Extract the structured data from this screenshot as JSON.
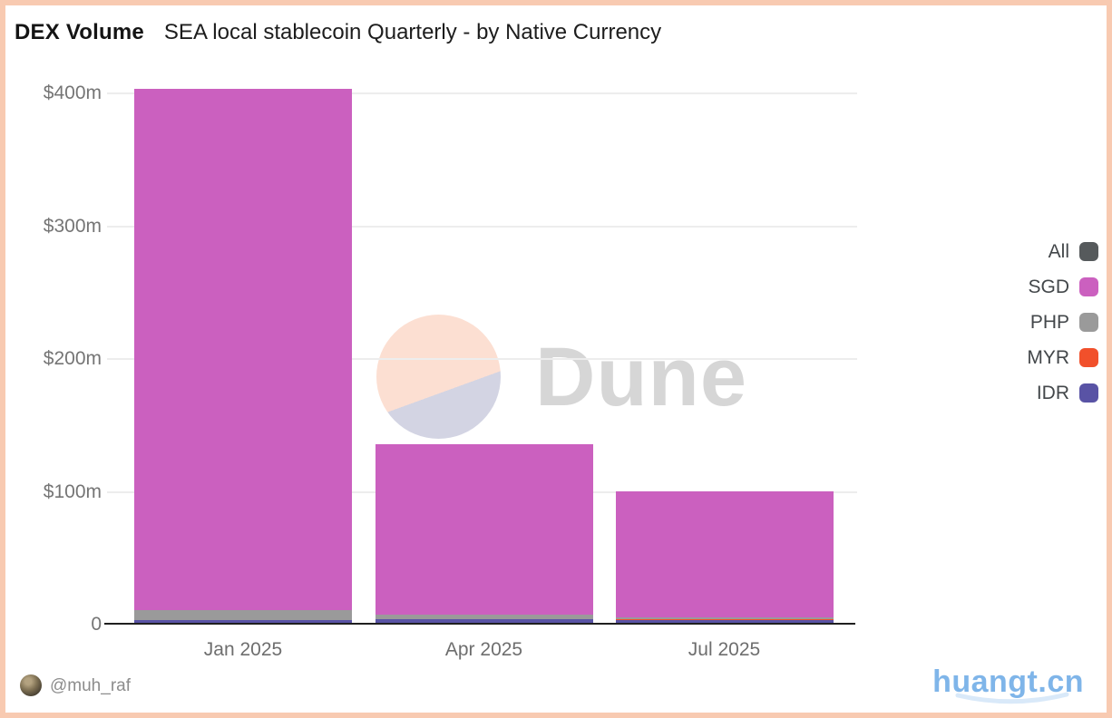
{
  "header": {
    "title": "DEX Volume",
    "subtitle": "SEA local stablecoin Quarterly - by Native Currency"
  },
  "watermark": {
    "brand": "Dune"
  },
  "footer": {
    "author": "@muh_raf",
    "site": "huangt.cn"
  },
  "legend": {
    "position": "right",
    "items": [
      {
        "label": "All",
        "color": "#565a5c"
      },
      {
        "label": "SGD",
        "color": "#cb60bf"
      },
      {
        "label": "PHP",
        "color": "#9a9a9a"
      },
      {
        "label": "MYR",
        "color": "#f1502b"
      },
      {
        "label": "IDR",
        "color": "#5953a5"
      }
    ]
  },
  "colors": {
    "frame": "#f8cab1",
    "axis": "#1f1f1f",
    "grid": "#ededed",
    "brand_blue": "#7fb5e9",
    "watermark_peach": "#fcdfd2",
    "watermark_lavender": "#d3d4e3",
    "watermark_text": "#d6d6d6"
  },
  "chart_data": {
    "type": "bar",
    "stacked": true,
    "title": "DEX Volume — SEA local stablecoin Quarterly - by Native Currency",
    "xlabel": "",
    "ylabel": "",
    "unit": "$m",
    "ylim": [
      0,
      400
    ],
    "grid": "horizontal",
    "legend_position": "right",
    "categories": [
      "Jan 2025",
      "Apr 2025",
      "Jul 2025"
    ],
    "series": [
      {
        "name": "IDR",
        "color": "#5953a5",
        "values": [
          3,
          3.5,
          2.5
        ]
      },
      {
        "name": "MYR",
        "color": "#f1502b",
        "values": [
          0,
          0,
          1
        ]
      },
      {
        "name": "PHP",
        "color": "#9a9a9a",
        "values": [
          7,
          3,
          1
        ]
      },
      {
        "name": "SGD",
        "color": "#cb60bf",
        "values": [
          393,
          128.5,
          95.5
        ]
      }
    ],
    "stack_order": "bottom-to-top",
    "totals_approx": [
      403,
      135,
      100
    ],
    "y_ticks": [
      {
        "label": "$400m",
        "value": 400
      },
      {
        "label": "$300m",
        "value": 300
      },
      {
        "label": "$200m",
        "value": 200
      },
      {
        "label": "$100m",
        "value": 100
      },
      {
        "label": "0",
        "value": 0
      }
    ]
  }
}
